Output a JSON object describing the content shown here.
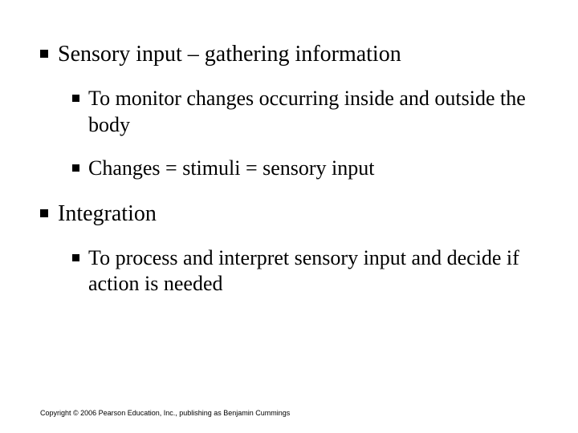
{
  "background_color": "#ffffff",
  "text_color": "#000000",
  "bullet_color": "#000000",
  "font_family": "Times New Roman",
  "l1_fontsize": 28,
  "l2_fontsize": 26,
  "items": [
    {
      "level": 1,
      "text": "Sensory input – gathering information"
    },
    {
      "level": 2,
      "text": "To monitor changes occurring inside and outside the body"
    },
    {
      "level": 2,
      "text": "Changes = stimuli = sensory input"
    },
    {
      "level": 1,
      "text": "Integration"
    },
    {
      "level": 2,
      "text": "To process and interpret sensory input and decide if action is needed"
    }
  ],
  "copyright": "Copyright © 2006 Pearson Education, Inc., publishing as Benjamin Cummings"
}
